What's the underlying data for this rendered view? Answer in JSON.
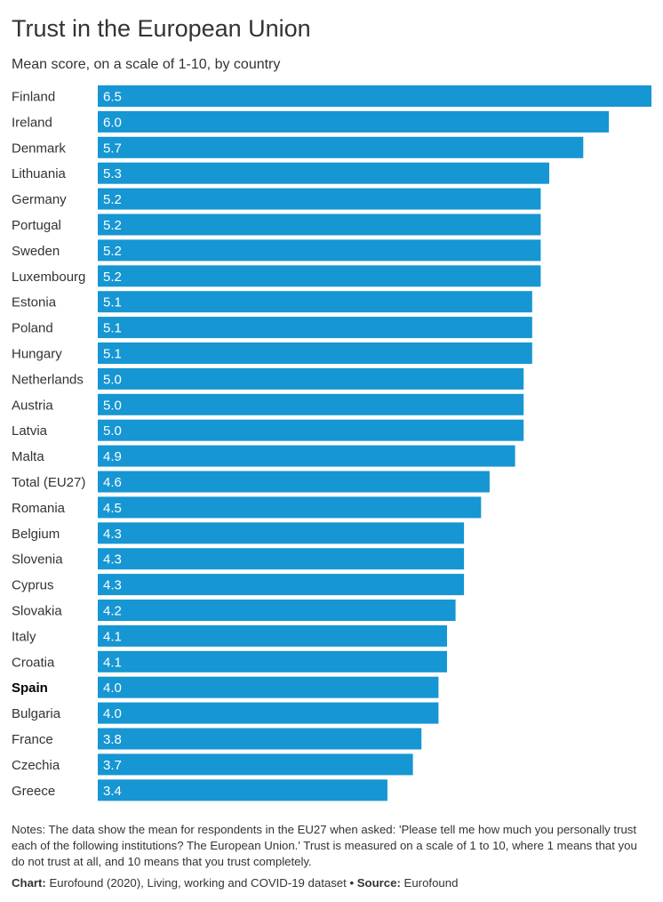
{
  "title": "Trust in the European Union",
  "subtitle": "Mean score, on a scale of 1-10, by country",
  "notes": "Notes: The data show the mean for respondents in the EU27 when asked: 'Please tell me how much you personally trust each of the following institutions? The European Union.'  Trust is measured on a scale of 1 to 10, where 1 means that you do not trust at all, and 10 means that you trust completely.",
  "credits": {
    "chart_label": "Chart:",
    "chart_text": "Eurofound (2020), Living, working and COVID-19 dataset",
    "separator": "•",
    "source_label": "Source:",
    "source_text": "Eurofound"
  },
  "colors": {
    "bar": "#1696d2",
    "bar_label": "#ffffff",
    "category_label": "#333333"
  },
  "chart_data": {
    "type": "bar",
    "orientation": "horizontal",
    "categories": [
      "Finland",
      "Ireland",
      "Denmark",
      "Lithuania",
      "Germany",
      "Portugal",
      "Sweden",
      "Luxembourg",
      "Estonia",
      "Poland",
      "Hungary",
      "Netherlands",
      "Austria",
      "Latvia",
      "Malta",
      "Total (EU27)",
      "Romania",
      "Belgium",
      "Slovenia",
      "Cyprus",
      "Slovakia",
      "Italy",
      "Croatia",
      "Spain",
      "Bulgaria",
      "France",
      "Czechia",
      "Greece"
    ],
    "values": [
      6.5,
      6.0,
      5.7,
      5.3,
      5.2,
      5.2,
      5.2,
      5.2,
      5.1,
      5.1,
      5.1,
      5.0,
      5.0,
      5.0,
      4.9,
      4.6,
      4.5,
      4.3,
      4.3,
      4.3,
      4.2,
      4.1,
      4.1,
      4.0,
      4.0,
      3.8,
      3.7,
      3.4
    ],
    "labels": [
      "6.5",
      "6.0",
      "5.7",
      "5.3",
      "5.2",
      "5.2",
      "5.2",
      "5.2",
      "5.1",
      "5.1",
      "5.1",
      "5.0",
      "5.0",
      "5.0",
      "4.9",
      "4.6",
      "4.5",
      "4.3",
      "4.3",
      "4.3",
      "4.2",
      "4.1",
      "4.1",
      "4.0",
      "4.0",
      "3.8",
      "3.7",
      "3.4"
    ],
    "highlighted": [
      "Spain"
    ],
    "xlim": [
      0,
      6.5
    ],
    "grid": false,
    "legend": "none"
  }
}
